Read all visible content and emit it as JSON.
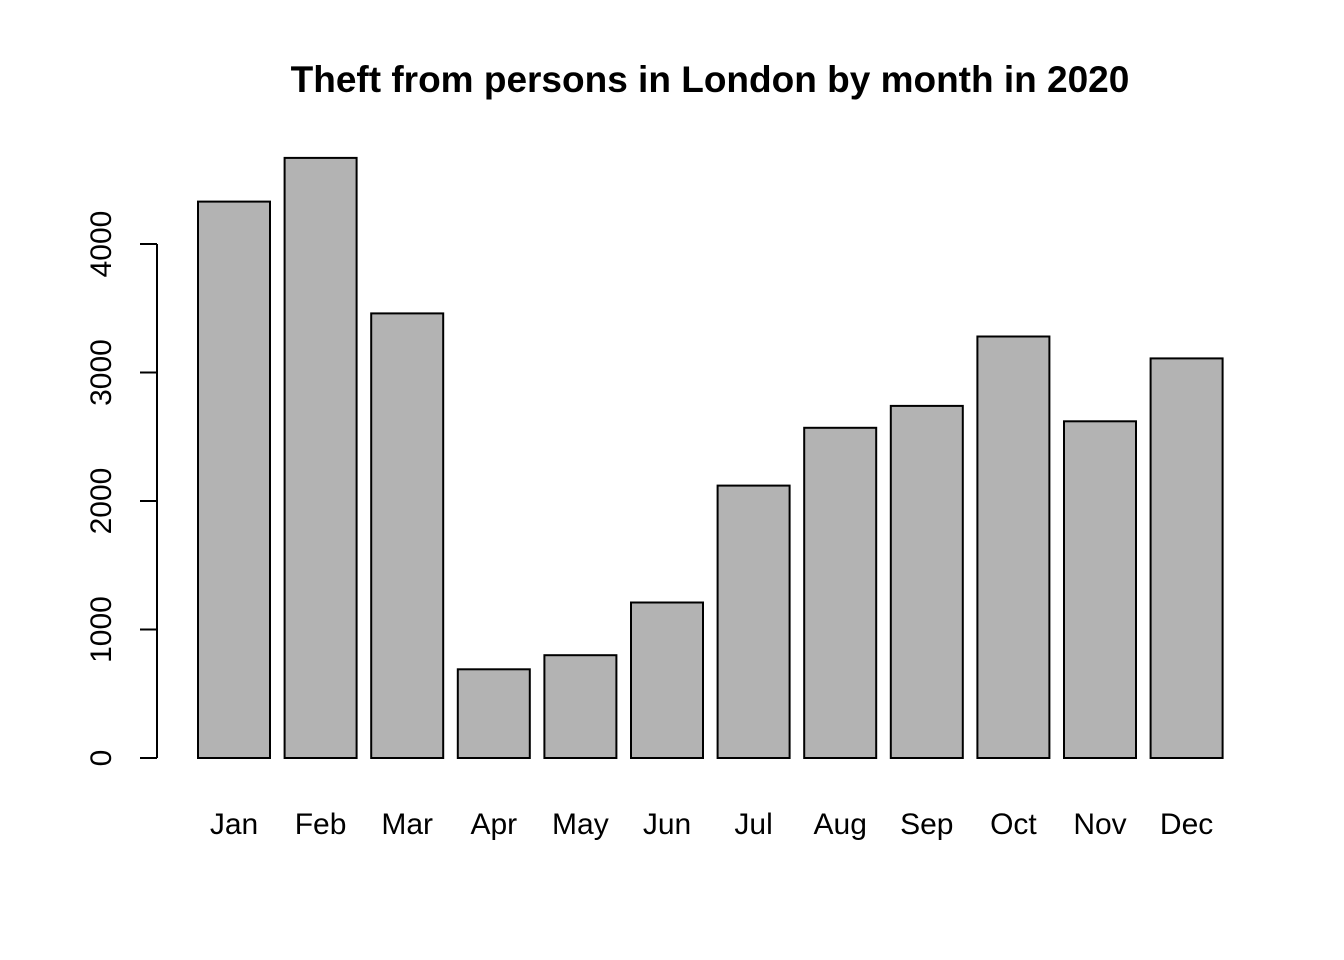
{
  "chart_data": {
    "type": "bar",
    "title": "Theft from persons in London by month in 2020",
    "xlabel": "",
    "ylabel": "",
    "categories": [
      "Jan",
      "Feb",
      "Mar",
      "Apr",
      "May",
      "Jun",
      "Jul",
      "Aug",
      "Sep",
      "Oct",
      "Nov",
      "Dec"
    ],
    "values": [
      4330,
      4670,
      3460,
      690,
      800,
      1210,
      2120,
      2570,
      2740,
      3280,
      2620,
      3110
    ],
    "ylim": [
      0,
      4800
    ],
    "yticks": [
      0,
      1000,
      2000,
      3000,
      4000
    ],
    "grid": false,
    "legend": "none",
    "colors": {
      "bar_fill": "#b3b3b3",
      "bar_stroke": "#000000",
      "background": "#ffffff"
    }
  }
}
